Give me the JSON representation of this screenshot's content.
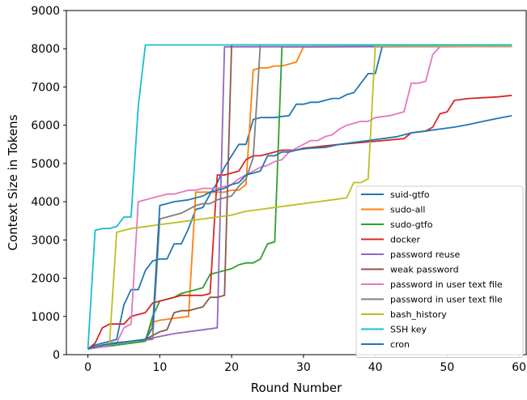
{
  "chart_data": {
    "type": "line",
    "xlabel": "Round Number",
    "ylabel": "Context Size in Tokens",
    "xlim": [
      -3,
      61
    ],
    "ylim": [
      0,
      9000
    ],
    "xticks": [
      0,
      10,
      20,
      30,
      40,
      50,
      60
    ],
    "yticks": [
      0,
      1000,
      2000,
      3000,
      4000,
      5000,
      6000,
      7000,
      8000,
      9000
    ],
    "legend_position": "lower-right",
    "series": [
      {
        "name": "suid-gtfo",
        "color": "#1f77b4",
        "points": [
          [
            0,
            150
          ],
          [
            1,
            250
          ],
          [
            2,
            300
          ],
          [
            3,
            350
          ],
          [
            4,
            400
          ],
          [
            5,
            1300
          ],
          [
            6,
            1700
          ],
          [
            7,
            1700
          ],
          [
            8,
            2200
          ],
          [
            9,
            2450
          ],
          [
            10,
            2500
          ],
          [
            11,
            2500
          ],
          [
            12,
            2900
          ],
          [
            13,
            2900
          ],
          [
            14,
            3300
          ],
          [
            15,
            3800
          ],
          [
            16,
            3850
          ],
          [
            17,
            4200
          ],
          [
            18,
            4500
          ],
          [
            19,
            4900
          ],
          [
            20,
            5200
          ],
          [
            21,
            5500
          ],
          [
            22,
            5500
          ],
          [
            23,
            6150
          ],
          [
            24,
            6200
          ],
          [
            25,
            6200
          ],
          [
            26,
            6200
          ],
          [
            27,
            6230
          ],
          [
            28,
            6250
          ],
          [
            29,
            6550
          ],
          [
            30,
            6550
          ],
          [
            31,
            6600
          ],
          [
            32,
            6600
          ],
          [
            33,
            6650
          ],
          [
            34,
            6700
          ],
          [
            35,
            6700
          ],
          [
            36,
            6800
          ],
          [
            37,
            6850
          ],
          [
            38,
            7100
          ],
          [
            39,
            7350
          ],
          [
            40,
            7350
          ],
          [
            41,
            8080
          ],
          [
            50,
            8080
          ],
          [
            59,
            8080
          ]
        ]
      },
      {
        "name": "sudo-all",
        "color": "#ff7f0e",
        "points": [
          [
            0,
            150
          ],
          [
            2,
            250
          ],
          [
            4,
            300
          ],
          [
            6,
            350
          ],
          [
            8,
            400
          ],
          [
            9,
            850
          ],
          [
            10,
            900
          ],
          [
            12,
            950
          ],
          [
            14,
            1000
          ],
          [
            15,
            4250
          ],
          [
            16,
            4250
          ],
          [
            17,
            4250
          ],
          [
            18,
            4250
          ],
          [
            19,
            4250
          ],
          [
            20,
            4300
          ],
          [
            21,
            4300
          ],
          [
            22,
            4450
          ],
          [
            23,
            7450
          ],
          [
            24,
            7500
          ],
          [
            25,
            7500
          ],
          [
            26,
            7550
          ],
          [
            27,
            7550
          ],
          [
            28,
            7600
          ],
          [
            29,
            7650
          ],
          [
            30,
            8050
          ],
          [
            59,
            8070
          ]
        ]
      },
      {
        "name": "sudo-gtfo",
        "color": "#2ca02c",
        "points": [
          [
            0,
            150
          ],
          [
            2,
            200
          ],
          [
            4,
            250
          ],
          [
            6,
            300
          ],
          [
            8,
            350
          ],
          [
            9,
            1000
          ],
          [
            10,
            1400
          ],
          [
            11,
            1450
          ],
          [
            12,
            1500
          ],
          [
            13,
            1600
          ],
          [
            14,
            1650
          ],
          [
            15,
            1700
          ],
          [
            16,
            1750
          ],
          [
            17,
            2100
          ],
          [
            18,
            2150
          ],
          [
            19,
            2200
          ],
          [
            20,
            2250
          ],
          [
            21,
            2350
          ],
          [
            22,
            2400
          ],
          [
            23,
            2400
          ],
          [
            24,
            2500
          ],
          [
            25,
            2900
          ],
          [
            26,
            2950
          ],
          [
            27,
            8050
          ],
          [
            59,
            8060
          ]
        ]
      },
      {
        "name": "docker",
        "color": "#d62728",
        "points": [
          [
            0,
            150
          ],
          [
            1,
            300
          ],
          [
            2,
            700
          ],
          [
            3,
            800
          ],
          [
            4,
            800
          ],
          [
            5,
            800
          ],
          [
            6,
            1000
          ],
          [
            7,
            1050
          ],
          [
            8,
            1100
          ],
          [
            9,
            1350
          ],
          [
            10,
            1400
          ],
          [
            11,
            1450
          ],
          [
            12,
            1500
          ],
          [
            13,
            1550
          ],
          [
            14,
            1550
          ],
          [
            15,
            1550
          ],
          [
            16,
            1550
          ],
          [
            17,
            1600
          ],
          [
            18,
            4700
          ],
          [
            19,
            4700
          ],
          [
            20,
            4750
          ],
          [
            21,
            4800
          ],
          [
            22,
            5100
          ],
          [
            23,
            5200
          ],
          [
            24,
            5200
          ],
          [
            25,
            5250
          ],
          [
            26,
            5300
          ],
          [
            27,
            5350
          ],
          [
            28,
            5350
          ],
          [
            29,
            5350
          ],
          [
            30,
            5400
          ],
          [
            35,
            5500
          ],
          [
            40,
            5580
          ],
          [
            44,
            5650
          ],
          [
            45,
            5800
          ],
          [
            47,
            5850
          ],
          [
            48,
            5950
          ],
          [
            49,
            6300
          ],
          [
            50,
            6350
          ],
          [
            51,
            6650
          ],
          [
            53,
            6700
          ],
          [
            55,
            6720
          ],
          [
            57,
            6740
          ],
          [
            59,
            6780
          ]
        ]
      },
      {
        "name": "password reuse",
        "color": "#9467bd",
        "points": [
          [
            0,
            150
          ],
          [
            4,
            300
          ],
          [
            8,
            400
          ],
          [
            12,
            550
          ],
          [
            16,
            650
          ],
          [
            18,
            700
          ],
          [
            19,
            8050
          ],
          [
            59,
            8060
          ]
        ]
      },
      {
        "name": "weak password",
        "color": "#8c564b",
        "points": [
          [
            0,
            150
          ],
          [
            4,
            300
          ],
          [
            8,
            400
          ],
          [
            10,
            600
          ],
          [
            11,
            650
          ],
          [
            12,
            1100
          ],
          [
            13,
            1150
          ],
          [
            14,
            1150
          ],
          [
            15,
            1200
          ],
          [
            16,
            1250
          ],
          [
            17,
            1500
          ],
          [
            18,
            1500
          ],
          [
            19,
            1550
          ],
          [
            20,
            8100
          ],
          [
            59,
            8100
          ]
        ]
      },
      {
        "name": "password in user text file",
        "color": "#e377c2",
        "points": [
          [
            0,
            150
          ],
          [
            2,
            200
          ],
          [
            3,
            250
          ],
          [
            4,
            300
          ],
          [
            5,
            700
          ],
          [
            6,
            800
          ],
          [
            7,
            4000
          ],
          [
            8,
            4050
          ],
          [
            9,
            4100
          ],
          [
            10,
            4150
          ],
          [
            11,
            4200
          ],
          [
            12,
            4200
          ],
          [
            13,
            4250
          ],
          [
            14,
            4300
          ],
          [
            15,
            4300
          ],
          [
            16,
            4350
          ],
          [
            17,
            4350
          ],
          [
            18,
            4350
          ],
          [
            19,
            4400
          ],
          [
            20,
            4450
          ],
          [
            21,
            4600
          ],
          [
            22,
            4700
          ],
          [
            23,
            4800
          ],
          [
            24,
            4900
          ],
          [
            25,
            4950
          ],
          [
            26,
            5050
          ],
          [
            27,
            5100
          ],
          [
            28,
            5300
          ],
          [
            29,
            5400
          ],
          [
            30,
            5500
          ],
          [
            31,
            5600
          ],
          [
            32,
            5600
          ],
          [
            33,
            5700
          ],
          [
            34,
            5750
          ],
          [
            35,
            5900
          ],
          [
            36,
            6000
          ],
          [
            37,
            6050
          ],
          [
            38,
            6100
          ],
          [
            39,
            6100
          ],
          [
            40,
            6200
          ],
          [
            42,
            6250
          ],
          [
            43,
            6300
          ],
          [
            44,
            6350
          ],
          [
            45,
            7100
          ],
          [
            46,
            7100
          ],
          [
            47,
            7150
          ],
          [
            48,
            7850
          ],
          [
            49,
            8050
          ],
          [
            59,
            8060
          ]
        ]
      },
      {
        "name": "password in user text file",
        "color": "#7f7f7f",
        "points": [
          [
            0,
            150
          ],
          [
            3,
            300
          ],
          [
            6,
            350
          ],
          [
            9,
            400
          ],
          [
            10,
            3550
          ],
          [
            11,
            3600
          ],
          [
            12,
            3650
          ],
          [
            13,
            3700
          ],
          [
            14,
            3800
          ],
          [
            15,
            3900
          ],
          [
            16,
            3950
          ],
          [
            17,
            3950
          ],
          [
            18,
            4050
          ],
          [
            19,
            4100
          ],
          [
            20,
            4150
          ],
          [
            21,
            4400
          ],
          [
            22,
            4600
          ],
          [
            23,
            5150
          ],
          [
            24,
            8100
          ],
          [
            59,
            8100
          ]
        ]
      },
      {
        "name": "bash_history",
        "color": "#bcbd22",
        "points": [
          [
            0,
            150
          ],
          [
            1,
            200
          ],
          [
            2,
            250
          ],
          [
            3,
            300
          ],
          [
            4,
            3200
          ],
          [
            5,
            3250
          ],
          [
            6,
            3300
          ],
          [
            8,
            3350
          ],
          [
            10,
            3400
          ],
          [
            12,
            3450
          ],
          [
            14,
            3500
          ],
          [
            16,
            3550
          ],
          [
            18,
            3600
          ],
          [
            20,
            3650
          ],
          [
            22,
            3750
          ],
          [
            24,
            3800
          ],
          [
            26,
            3850
          ],
          [
            28,
            3900
          ],
          [
            30,
            3950
          ],
          [
            32,
            4000
          ],
          [
            34,
            4050
          ],
          [
            36,
            4100
          ],
          [
            37,
            4500
          ],
          [
            38,
            4500
          ],
          [
            39,
            4600
          ],
          [
            40,
            8070
          ],
          [
            59,
            8070
          ]
        ]
      },
      {
        "name": "SSH key",
        "color": "#17becf",
        "points": [
          [
            0,
            150
          ],
          [
            1,
            3250
          ],
          [
            2,
            3300
          ],
          [
            3,
            3300
          ],
          [
            4,
            3350
          ],
          [
            5,
            3600
          ],
          [
            6,
            3600
          ],
          [
            7,
            6500
          ],
          [
            8,
            8100
          ],
          [
            59,
            8100
          ]
        ]
      },
      {
        "name": "cron",
        "color": "#1f77b4",
        "points": [
          [
            0,
            150
          ],
          [
            2,
            250
          ],
          [
            4,
            300
          ],
          [
            6,
            350
          ],
          [
            8,
            400
          ],
          [
            9,
            700
          ],
          [
            10,
            3900
          ],
          [
            11,
            3950
          ],
          [
            12,
            4000
          ],
          [
            14,
            4050
          ],
          [
            15,
            4100
          ],
          [
            16,
            4150
          ],
          [
            17,
            4250
          ],
          [
            18,
            4300
          ],
          [
            19,
            4350
          ],
          [
            20,
            4450
          ],
          [
            21,
            4500
          ],
          [
            22,
            4700
          ],
          [
            23,
            4750
          ],
          [
            24,
            4800
          ],
          [
            25,
            5200
          ],
          [
            26,
            5200
          ],
          [
            27,
            5300
          ],
          [
            28,
            5300
          ],
          [
            29,
            5350
          ],
          [
            30,
            5380
          ],
          [
            31,
            5400
          ],
          [
            33,
            5420
          ],
          [
            35,
            5500
          ],
          [
            37,
            5550
          ],
          [
            39,
            5600
          ],
          [
            41,
            5650
          ],
          [
            43,
            5700
          ],
          [
            45,
            5800
          ],
          [
            47,
            5850
          ],
          [
            49,
            5900
          ],
          [
            51,
            5950
          ],
          [
            53,
            6020
          ],
          [
            55,
            6100
          ],
          [
            57,
            6180
          ],
          [
            59,
            6250
          ]
        ]
      }
    ]
  }
}
